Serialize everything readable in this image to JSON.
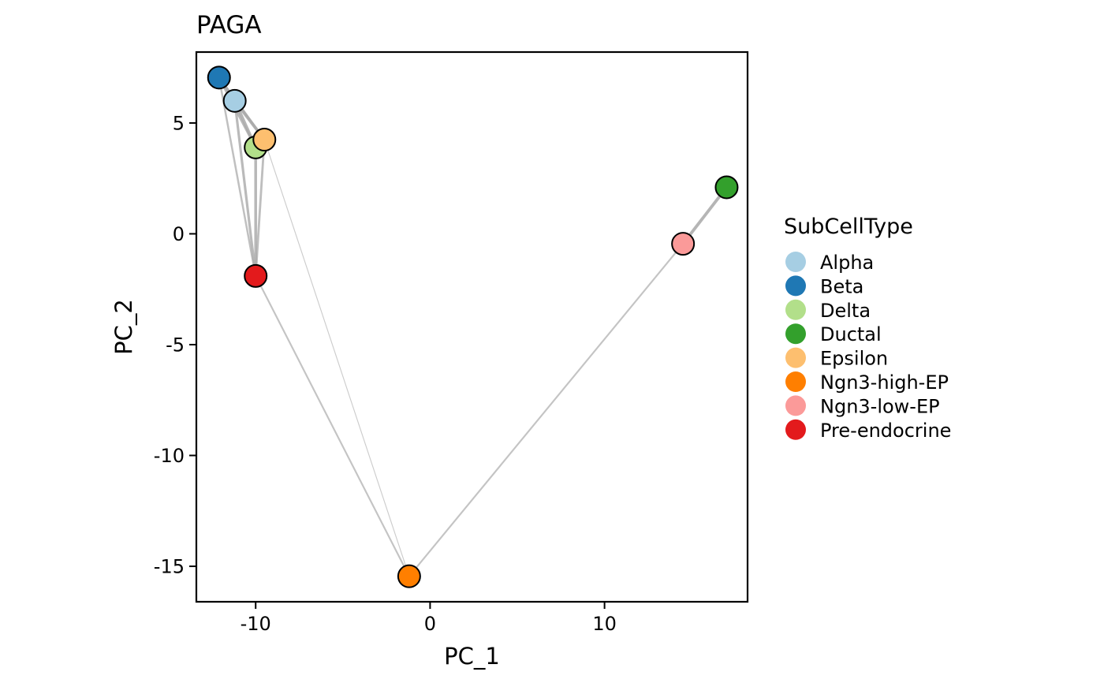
{
  "chart_data": {
    "type": "scatter",
    "title": "PAGA",
    "xlabel": "PC_1",
    "ylabel": "PC_2",
    "xlim": [
      -13.4,
      18.2
    ],
    "ylim": [
      -16.6,
      8.2
    ],
    "xticks": [
      -10,
      0,
      10
    ],
    "xtick_labels": [
      "-10",
      "0",
      "10"
    ],
    "yticks": [
      5,
      0,
      -5,
      -10,
      -15
    ],
    "ytick_labels": [
      "5",
      "0",
      "-5",
      "-10",
      "-15"
    ],
    "grid": false,
    "legend": {
      "title": "SubCellType",
      "position": "right"
    },
    "nodes": [
      {
        "name": "Alpha",
        "x": -11.2,
        "y": 6.0,
        "color": "#A6CEE3"
      },
      {
        "name": "Beta",
        "x": -12.1,
        "y": 7.05,
        "color": "#1F78B4"
      },
      {
        "name": "Delta",
        "x": -10.0,
        "y": 3.9,
        "color": "#B2DF8A"
      },
      {
        "name": "Ductal",
        "x": 17.0,
        "y": 2.1,
        "color": "#33A02C"
      },
      {
        "name": "Epsilon",
        "x": -9.5,
        "y": 4.25,
        "color": "#FDBF6F"
      },
      {
        "name": "Ngn3-high-EP",
        "x": -1.2,
        "y": -15.45,
        "color": "#FF7F00"
      },
      {
        "name": "Ngn3-low-EP",
        "x": 14.5,
        "y": -0.45,
        "color": "#FB9A99"
      },
      {
        "name": "Pre-endocrine",
        "x": -10.0,
        "y": -1.9,
        "color": "#E31A1C"
      }
    ],
    "edges": [
      {
        "source": "Beta",
        "target": "Alpha",
        "weight": 0.9
      },
      {
        "source": "Beta",
        "target": "Delta",
        "weight": 0.7
      },
      {
        "source": "Beta",
        "target": "Epsilon",
        "weight": 0.7
      },
      {
        "source": "Beta",
        "target": "Pre-endocrine",
        "weight": 0.5
      },
      {
        "source": "Alpha",
        "target": "Delta",
        "weight": 0.9
      },
      {
        "source": "Alpha",
        "target": "Epsilon",
        "weight": 0.9
      },
      {
        "source": "Alpha",
        "target": "Pre-endocrine",
        "weight": 0.7
      },
      {
        "source": "Delta",
        "target": "Epsilon",
        "weight": 0.8
      },
      {
        "source": "Delta",
        "target": "Pre-endocrine",
        "weight": 0.8
      },
      {
        "source": "Epsilon",
        "target": "Pre-endocrine",
        "weight": 0.6
      },
      {
        "source": "Pre-endocrine",
        "target": "Ngn3-high-EP",
        "weight": 0.4
      },
      {
        "source": "Epsilon",
        "target": "Ngn3-high-EP",
        "weight": 0.1
      },
      {
        "source": "Ngn3-high-EP",
        "target": "Ngn3-low-EP",
        "weight": 0.4
      },
      {
        "source": "Ngn3-low-EP",
        "target": "Ductal",
        "weight": 0.9
      }
    ],
    "edge_color": "#A9A9A9",
    "node_border_color": "#000000"
  }
}
